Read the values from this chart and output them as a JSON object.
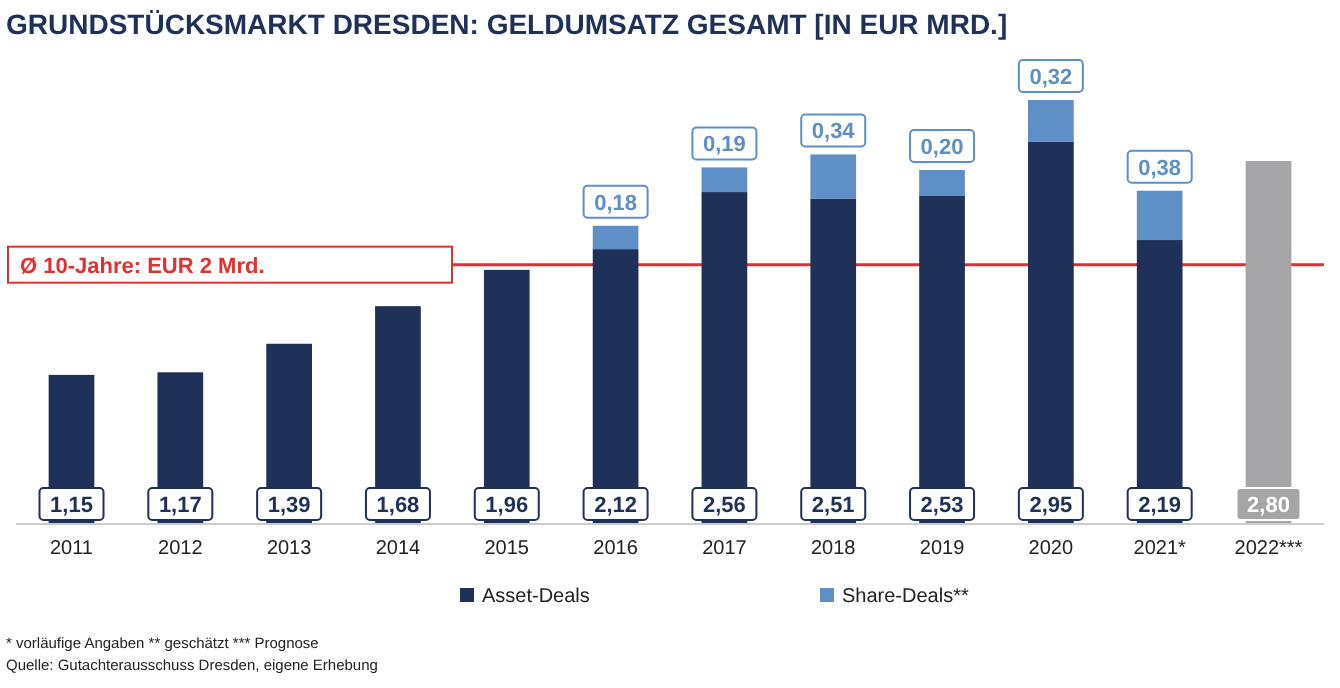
{
  "chart_data": {
    "type": "bar",
    "title": "GRUNDSTÜCKSMARKT DRESDEN: GELDUMSATZ GESAMT [IN EUR MRD.]",
    "categories": [
      "2011",
      "2012",
      "2013",
      "2014",
      "2015",
      "2016",
      "2017",
      "2018",
      "2019",
      "2020",
      "2021*",
      "2022***"
    ],
    "stacked": true,
    "legend": "bottom",
    "series": [
      {
        "name": "Asset-Deals",
        "color": "#1f3158",
        "colors": [
          "#1f3158",
          "#1f3158",
          "#1f3158",
          "#1f3158",
          "#1f3158",
          "#1f3158",
          "#1f3158",
          "#1f3158",
          "#1f3158",
          "#1f3158",
          "#1f3158",
          "#a5a5a8"
        ],
        "values": [
          1.15,
          1.17,
          1.39,
          1.68,
          1.96,
          2.12,
          2.56,
          2.51,
          2.53,
          2.95,
          2.19,
          2.8
        ],
        "value_labels": [
          "1,15",
          "1,17",
          "1,39",
          "1,68",
          "1,96",
          "2,12",
          "2,56",
          "2,51",
          "2,53",
          "2,95",
          "2,19",
          "2,80"
        ]
      },
      {
        "name": "Share-Deals**",
        "color": "#5f8fc7",
        "values": [
          null,
          null,
          null,
          null,
          null,
          0.18,
          0.19,
          0.34,
          0.2,
          0.32,
          0.38,
          null
        ],
        "value_labels": [
          null,
          null,
          null,
          null,
          null,
          "0,18",
          "0,19",
          "0,34",
          "0,20",
          "0,32",
          "0,38",
          null
        ]
      }
    ],
    "ref_lines": [
      {
        "axis": "y",
        "value": 2,
        "label": "Ø 10-Jahre: EUR 2 Mrd.",
        "color": "#e0312f"
      }
    ],
    "annotations": [
      "* vorläufige Angaben  ** geschätzt *** Prognose",
      "Quelle: Gutachterausschuss Dresden, eigene Erhebung"
    ]
  }
}
